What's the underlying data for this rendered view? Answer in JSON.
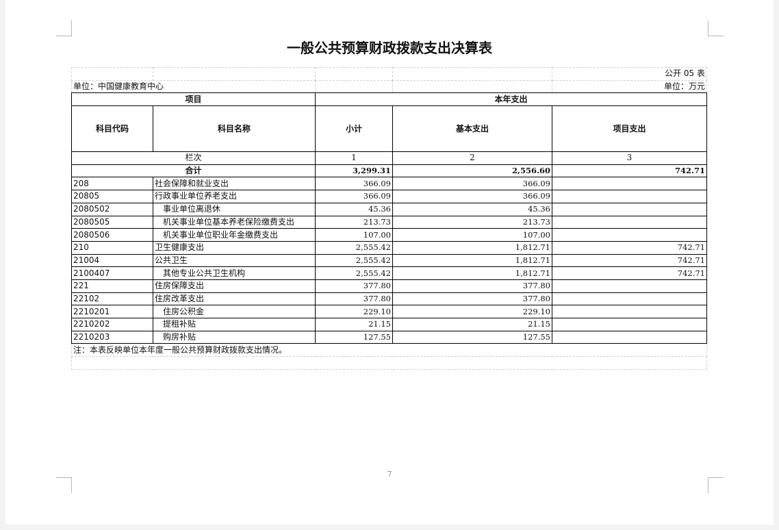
{
  "title": "一般公共预算财政拨款支出决算表",
  "table_no": "公开 05 表",
  "unit_org": "单位：中国健康教育中心",
  "unit_money": "单位：万元",
  "headers": {
    "project": "项目",
    "this_year": "本年支出",
    "code": "科目代码",
    "name": "科目名称",
    "subtotal": "小计",
    "basic": "基本支出",
    "program": "项目支出",
    "column_order": "栏次",
    "col1": "1",
    "col2": "2",
    "col3": "3"
  },
  "total": {
    "label": "合计",
    "subtotal": "3,299.31",
    "basic": "2,556.60",
    "program": "742.71"
  },
  "rows": [
    {
      "code": "208",
      "name": "社会保障和就业支出",
      "subtotal": "366.09",
      "basic": "366.09",
      "program": "",
      "indent": false
    },
    {
      "code": "20805",
      "name": "行政事业单位养老支出",
      "subtotal": "366.09",
      "basic": "366.09",
      "program": "",
      "indent": false
    },
    {
      "code": "2080502",
      "name": "事业单位离退休",
      "subtotal": "45.36",
      "basic": "45.36",
      "program": "",
      "indent": true
    },
    {
      "code": "2080505",
      "name": "机关事业单位基本养老保险缴费支出",
      "subtotal": "213.73",
      "basic": "213.73",
      "program": "",
      "indent": true
    },
    {
      "code": "2080506",
      "name": "机关事业单位职业年金缴费支出",
      "subtotal": "107.00",
      "basic": "107.00",
      "program": "",
      "indent": true
    },
    {
      "code": "210",
      "name": "卫生健康支出",
      "subtotal": "2,555.42",
      "basic": "1,812.71",
      "program": "742.71",
      "indent": false
    },
    {
      "code": "21004",
      "name": "公共卫生",
      "subtotal": "2,555.42",
      "basic": "1,812.71",
      "program": "742.71",
      "indent": false
    },
    {
      "code": "2100407",
      "name": "其他专业公共卫生机构",
      "subtotal": "2,555.42",
      "basic": "1,812.71",
      "program": "742.71",
      "indent": true
    },
    {
      "code": "221",
      "name": "住房保障支出",
      "subtotal": "377.80",
      "basic": "377.80",
      "program": "",
      "indent": false
    },
    {
      "code": "22102",
      "name": "住房改革支出",
      "subtotal": "377.80",
      "basic": "377.80",
      "program": "",
      "indent": false
    },
    {
      "code": "2210201",
      "name": "住房公积金",
      "subtotal": "229.10",
      "basic": "229.10",
      "program": "",
      "indent": true
    },
    {
      "code": "2210202",
      "name": "提租补贴",
      "subtotal": "21.15",
      "basic": "21.15",
      "program": "",
      "indent": true
    },
    {
      "code": "2210203",
      "name": "购房补贴",
      "subtotal": "127.55",
      "basic": "127.55",
      "program": "",
      "indent": true
    }
  ],
  "note": "注：本表反映单位本年度一般公共预算财政拨款支出情况。",
  "page_number": "7"
}
